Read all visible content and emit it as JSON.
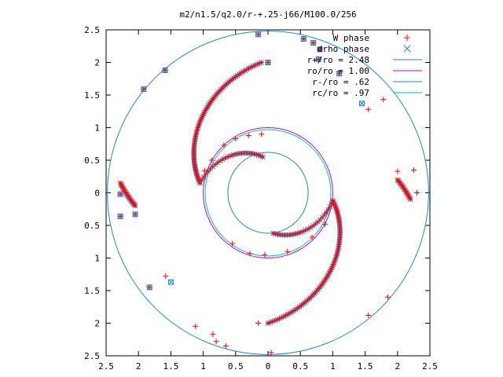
{
  "chart_data": {
    "type": "scatter",
    "title": "m2/n1.5/q2.0/r-+.25-j66/M100.0/256",
    "xlabel": "",
    "ylabel": "",
    "xlim": [
      -2.5,
      2.5
    ],
    "ylim": [
      -2.5,
      2.5
    ],
    "x_tick_labels": [
      "2.5",
      "2",
      "1.5",
      "1",
      "0.5",
      "0",
      "0.5",
      "1",
      "1.5",
      "2",
      "2.5"
    ],
    "y_tick_labels": [
      "2.5",
      "2",
      "1.5",
      "1",
      "0.5",
      "0",
      "0.5",
      "1",
      "1.5",
      "2",
      "2.5"
    ],
    "grid": false,
    "legend_position": "top-right",
    "legend": [
      {
        "label": "W phase",
        "kind": "point",
        "marker": "+",
        "color": "#ff0000"
      },
      {
        "label": "drho phase",
        "kind": "point",
        "marker": "x",
        "color": "#1f87d0"
      },
      {
        "label": "r+/ro = 2.48",
        "kind": "line",
        "color": "#1f87d0"
      },
      {
        "label": "ro/ro = 1.00",
        "kind": "line",
        "color": "#c000c0"
      },
      {
        "label": "r-/ro = .62",
        "kind": "line",
        "color": "#1f87d0"
      },
      {
        "label": "rc/ro = .97",
        "kind": "line",
        "color": "#00c0c0"
      }
    ],
    "circles": [
      {
        "name": "r+/ro = 2.48",
        "r": 2.48,
        "color": "#1f87d0"
      },
      {
        "name": "ro/ro = 1.00",
        "r": 1.0,
        "color": "#c000c0"
      },
      {
        "name": "r-/ro = .62",
        "r": 0.62,
        "color": "#1f87d0"
      },
      {
        "name": "rc/ro = .97",
        "r": 0.97,
        "color": "#00c0c0"
      }
    ],
    "arms": [
      {
        "start": [
          0.08,
          -0.62
        ],
        "end": [
          1.0,
          -0.12
        ],
        "count": 26
      },
      {
        "start": [
          1.0,
          -0.12
        ],
        "end": [
          0.0,
          -2.0
        ],
        "count": 80
      },
      {
        "start": [
          -0.08,
          0.55
        ],
        "end": [
          -1.05,
          0.15
        ],
        "count": 26
      },
      {
        "start": [
          -1.05,
          0.15
        ],
        "end": [
          -0.1,
          2.0
        ],
        "count": 80
      },
      {
        "start": [
          -2.28,
          0.15
        ],
        "end": [
          -2.05,
          -0.2
        ],
        "count": 22
      },
      {
        "start": [
          2.0,
          0.2
        ],
        "end": [
          2.2,
          -0.1
        ],
        "count": 18
      }
    ],
    "w_points": [
      [
        -0.15,
        2.43
      ],
      [
        0.0,
        2.0
      ],
      [
        0.55,
        2.36
      ],
      [
        0.7,
        2.3
      ],
      [
        0.8,
        2.2
      ],
      [
        0.78,
        2.05
      ],
      [
        1.1,
        1.83
      ],
      [
        1.78,
        1.43
      ],
      [
        1.55,
        1.28
      ],
      [
        -1.59,
        1.88
      ],
      [
        -1.92,
        1.59
      ],
      [
        -0.68,
        0.73
      ],
      [
        -0.5,
        0.83
      ],
      [
        -0.3,
        0.88
      ],
      [
        -0.1,
        0.9
      ],
      [
        -0.87,
        0.5
      ],
      [
        -0.98,
        0.34
      ],
      [
        -0.55,
        -0.78
      ],
      [
        -0.28,
        -0.93
      ],
      [
        -0.05,
        -0.95
      ],
      [
        0.3,
        -0.9
      ],
      [
        0.68,
        -0.68
      ],
      [
        0.88,
        -0.48
      ],
      [
        -2.28,
        -0.02
      ],
      [
        -2.28,
        -0.36
      ],
      [
        -2.05,
        -0.33
      ],
      [
        -1.83,
        -1.45
      ],
      [
        -1.58,
        -1.28
      ],
      [
        -1.12,
        -2.05
      ],
      [
        -0.85,
        -2.17
      ],
      [
        -0.8,
        -2.28
      ],
      [
        -0.65,
        -2.35
      ],
      [
        0.05,
        -2.45
      ],
      [
        -0.15,
        -2.0
      ],
      [
        1.55,
        -1.88
      ],
      [
        1.85,
        -1.6
      ],
      [
        2.0,
        0.33
      ],
      [
        2.25,
        0.35
      ],
      [
        2.3,
        0.0
      ]
    ],
    "drho_points": [
      [
        -0.15,
        2.43
      ],
      [
        0.0,
        2.0
      ],
      [
        0.55,
        2.36
      ],
      [
        0.7,
        2.3
      ],
      [
        0.8,
        2.2
      ],
      [
        0.78,
        2.05
      ],
      [
        1.1,
        1.83
      ],
      [
        1.45,
        1.37
      ],
      [
        -1.59,
        1.88
      ],
      [
        -1.92,
        1.59
      ],
      [
        -1.83,
        -1.45
      ],
      [
        -1.5,
        -1.37
      ],
      [
        -2.28,
        -0.02
      ],
      [
        -2.28,
        -0.36
      ],
      [
        -2.05,
        -0.33
      ]
    ]
  }
}
